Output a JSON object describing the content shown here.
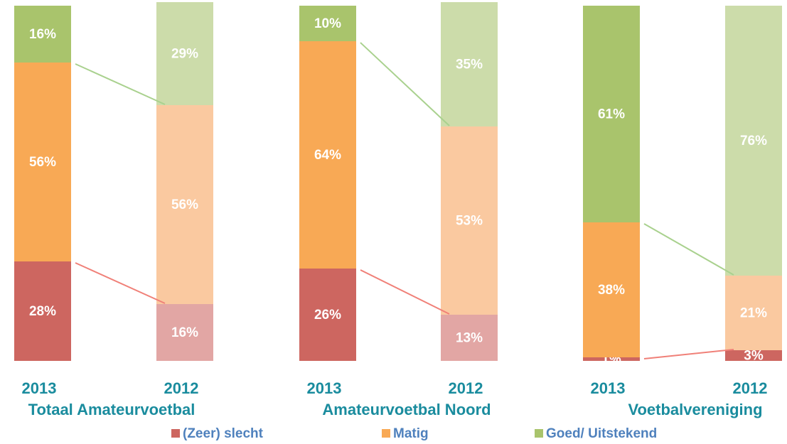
{
  "chart_data": {
    "type": "stacked_bar",
    "categories": [
      "2013",
      "2012",
      "2013",
      "2012",
      "2013",
      "2012"
    ],
    "group_labels": [
      "Totaal Amateurvoetbal",
      "Amateurvoetbal Noord",
      "Voetbalvereniging"
    ],
    "ylim": [
      0,
      100
    ],
    "series": [
      {
        "name": "(Zeer) slecht",
        "color": "#cd6660",
        "bar_colors": [
          "#cd6660",
          "#e2a6a4",
          "#cd6660",
          "#e2a6a4",
          "#cd6660",
          "#cd6660"
        ],
        "values": [
          28,
          16,
          26,
          13,
          1,
          3
        ],
        "value_labels": [
          "28%",
          "16%",
          "26%",
          "13%",
          "1%",
          "3%"
        ]
      },
      {
        "name": "Matig",
        "color": "#f8a955",
        "bar_colors": [
          "#f8a955",
          "#fac9a0",
          "#f8a955",
          "#fac9a0",
          "#f8a955",
          "#fac9a0"
        ],
        "values": [
          56,
          56,
          64,
          53,
          38,
          21
        ],
        "value_labels": [
          "56%",
          "56%",
          "64%",
          "53%",
          "38%",
          "21%"
        ]
      },
      {
        "name": "Goed/ Uitstekend",
        "color": "#a9c46c",
        "bar_colors": [
          "#a9c46c",
          "#ccdcaa",
          "#a9c46c",
          "#ccdcaa",
          "#a9c46c",
          "#ccdcaa"
        ],
        "values": [
          16,
          29,
          10,
          35,
          61,
          76
        ],
        "value_labels": [
          "16%",
          "29%",
          "10%",
          "35%",
          "61%",
          "76%"
        ]
      }
    ]
  }
}
